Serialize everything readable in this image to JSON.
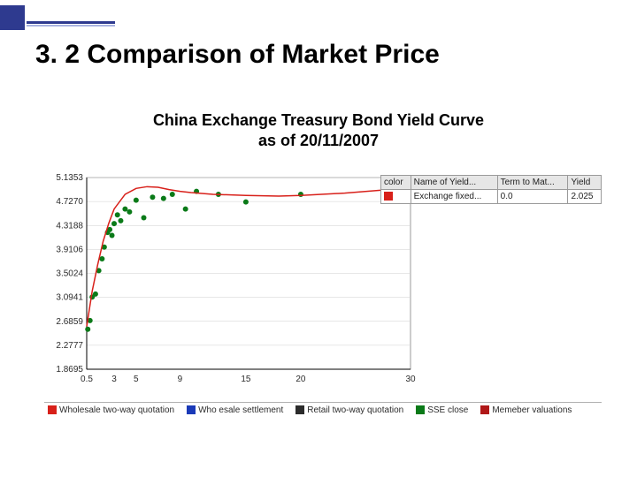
{
  "header": {
    "title": "3. 2 Comparison of Market Price",
    "subtitle_line1": "China Exchange Treasury Bond Yield Curve",
    "subtitle_line2": "as of 20/11/2007"
  },
  "yield_curve": {
    "type": "line+scatter",
    "background_color": "#ffffff",
    "border_color": "#9a9a9a",
    "grid_color": "#cfcfcf",
    "axis_color": "#000000",
    "xlim": [
      0.5,
      30
    ],
    "ylim": [
      1.8695,
      5.1353
    ],
    "yticks": [
      5.1353,
      4.727,
      4.3188,
      3.9106,
      3.5024,
      3.0941,
      2.6859,
      2.2777,
      1.8695
    ],
    "xticks": [
      0.5,
      3,
      5,
      9,
      15,
      20,
      30
    ],
    "tick_fontsize": 10,
    "line_series": {
      "name": "Exchange fixed",
      "color": "#d8201a",
      "line_width": 1.5,
      "x": [
        0.5,
        1.0,
        1.5,
        2.0,
        2.5,
        3.0,
        4.0,
        5.0,
        6.0,
        7.0,
        8.0,
        9.0,
        10.0,
        12.0,
        15.0,
        18.0,
        20.0,
        24.0,
        28.0,
        30.0
      ],
      "y": [
        2.6,
        3.2,
        3.65,
        4.05,
        4.35,
        4.6,
        4.85,
        4.95,
        4.98,
        4.97,
        4.93,
        4.9,
        4.88,
        4.85,
        4.83,
        4.82,
        4.83,
        4.87,
        4.93,
        4.95
      ]
    },
    "scatter_series": {
      "name": "SSE close",
      "color": "#0a7a18",
      "marker": "circle",
      "marker_size": 3,
      "x": [
        0.6,
        0.8,
        1.0,
        1.3,
        1.6,
        1.9,
        2.1,
        2.4,
        2.6,
        2.8,
        3.0,
        3.3,
        3.6,
        4.0,
        4.4,
        5.0,
        5.7,
        6.5,
        7.5,
        8.3,
        9.5,
        10.5,
        12.5,
        15.0,
        20.0
      ],
      "y": [
        2.55,
        2.7,
        3.1,
        3.15,
        3.55,
        3.75,
        3.95,
        4.2,
        4.25,
        4.15,
        4.35,
        4.5,
        4.4,
        4.6,
        4.55,
        4.75,
        4.45,
        4.8,
        4.78,
        4.85,
        4.6,
        4.9,
        4.85,
        4.72,
        4.85
      ]
    }
  },
  "right_table": {
    "headers": [
      "color",
      "Name of Yield...",
      "Term to Mat...",
      "Yield"
    ],
    "row": {
      "color": "#d8201a",
      "name": "Exchange fixed...",
      "term": "0.0",
      "yield": "2.025"
    }
  },
  "footer_legend": {
    "items": [
      {
        "label": "Wholesale two-way quotation",
        "color": "#d8201a"
      },
      {
        "label": "Who esale settlement",
        "color": "#1a3ab8"
      },
      {
        "label": "Retail two-way quotation",
        "color": "#2b2b2b"
      },
      {
        "label": "SSE close",
        "color": "#0a7a18"
      },
      {
        "label": "Memeber valuations",
        "color": "#b01818"
      }
    ]
  }
}
